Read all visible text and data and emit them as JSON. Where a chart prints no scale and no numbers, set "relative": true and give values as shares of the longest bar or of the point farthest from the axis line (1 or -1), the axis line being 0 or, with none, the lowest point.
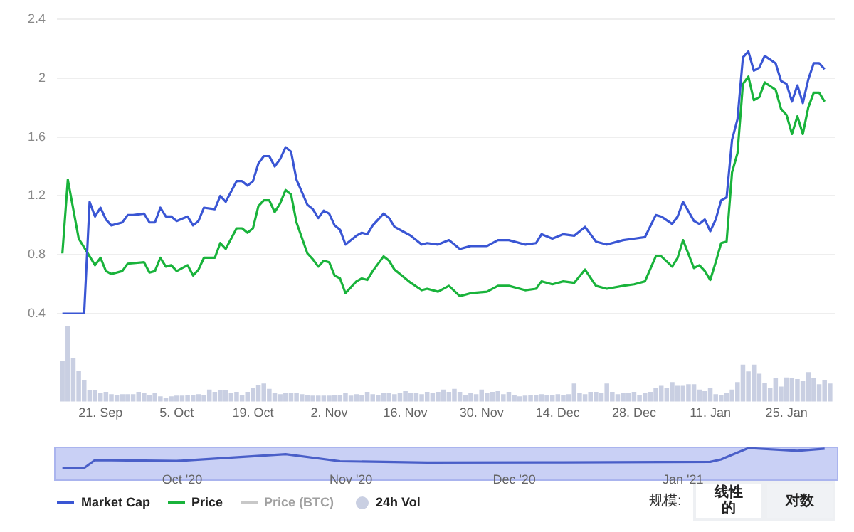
{
  "chart_data": [
    {
      "type": "line",
      "xlim": [
        "2020-09-13",
        "2021-02-03"
      ],
      "ylim": [
        0.4,
        2.4
      ],
      "yticks": [
        0.4,
        0.8,
        1.2,
        1.6,
        2,
        2.4
      ],
      "grid": "y",
      "tick_labels": "y",
      "legend": "bottom",
      "annotations": [
        "规模:",
        "线性的",
        "对数"
      ],
      "series": [
        {
          "name": "Market Cap",
          "color": "#3a56d4",
          "x": [
            "2020-09-14",
            "2020-09-18",
            "2020-09-19",
            "2020-09-20",
            "2020-09-21",
            "2020-09-22",
            "2020-09-23",
            "2020-09-25",
            "2020-09-26",
            "2020-09-27",
            "2020-09-29",
            "2020-09-30",
            "2020-10-01",
            "2020-10-02",
            "2020-10-03",
            "2020-10-04",
            "2020-10-05",
            "2020-10-07",
            "2020-10-08",
            "2020-10-09",
            "2020-10-10",
            "2020-10-12",
            "2020-10-13",
            "2020-10-14",
            "2020-10-16",
            "2020-10-17",
            "2020-10-18",
            "2020-10-19",
            "2020-10-20",
            "2020-10-21",
            "2020-10-22",
            "2020-10-23",
            "2020-10-24",
            "2020-10-25",
            "2020-10-26",
            "2020-10-27",
            "2020-10-29",
            "2020-10-30",
            "2020-10-31",
            "2020-11-01",
            "2020-11-02",
            "2020-11-03",
            "2020-11-04",
            "2020-11-05",
            "2020-11-07",
            "2020-11-08",
            "2020-11-09",
            "2020-11-10",
            "2020-11-12",
            "2020-11-13",
            "2020-11-14",
            "2020-11-16",
            "2020-11-17",
            "2020-11-19",
            "2020-11-20",
            "2020-11-22",
            "2020-11-24",
            "2020-11-26",
            "2020-11-28",
            "2020-12-01",
            "2020-12-03",
            "2020-12-05",
            "2020-12-08",
            "2020-12-10",
            "2020-12-11",
            "2020-12-13",
            "2020-12-15",
            "2020-12-17",
            "2020-12-19",
            "2020-12-21",
            "2020-12-23",
            "2020-12-26",
            "2020-12-28",
            "2020-12-30",
            "2021-01-01",
            "2021-01-02",
            "2021-01-04",
            "2021-01-05",
            "2021-01-06",
            "2021-01-08",
            "2021-01-09",
            "2021-01-10",
            "2021-01-11",
            "2021-01-12",
            "2021-01-13",
            "2021-01-14",
            "2021-01-15",
            "2021-01-16",
            "2021-01-17",
            "2021-01-18",
            "2021-01-19",
            "2021-01-20",
            "2021-01-21",
            "2021-01-23",
            "2021-01-24",
            "2021-01-25",
            "2021-01-26",
            "2021-01-27",
            "2021-01-28",
            "2021-01-29",
            "2021-01-30",
            "2021-01-31",
            "2021-02-01"
          ],
          "values": [
            0.4,
            0.4,
            1.16,
            1.06,
            1.12,
            1.04,
            1.0,
            1.02,
            1.07,
            1.07,
            1.08,
            1.02,
            1.02,
            1.12,
            1.06,
            1.06,
            1.03,
            1.06,
            1.0,
            1.03,
            1.12,
            1.11,
            1.2,
            1.16,
            1.3,
            1.3,
            1.27,
            1.3,
            1.42,
            1.47,
            1.47,
            1.4,
            1.45,
            1.53,
            1.5,
            1.31,
            1.14,
            1.11,
            1.05,
            1.1,
            1.08,
            1.0,
            0.97,
            0.87,
            0.93,
            0.95,
            0.94,
            1.0,
            1.08,
            1.05,
            0.99,
            0.95,
            0.93,
            0.87,
            0.88,
            0.87,
            0.9,
            0.84,
            0.86,
            0.86,
            0.9,
            0.9,
            0.87,
            0.88,
            0.94,
            0.91,
            0.94,
            0.93,
            0.99,
            0.89,
            0.87,
            0.9,
            0.91,
            0.92,
            1.07,
            1.06,
            1.01,
            1.06,
            1.16,
            1.03,
            1.01,
            1.04,
            0.96,
            1.04,
            1.17,
            1.19,
            1.58,
            1.72,
            2.14,
            2.18,
            2.05,
            2.07,
            2.15,
            2.1,
            1.98,
            1.96,
            1.84,
            1.95,
            1.83,
            1.99,
            2.1,
            2.1,
            2.06
          ]
        },
        {
          "name": "Price",
          "color": "#19b33b",
          "x": [
            "2020-09-14",
            "2020-09-15",
            "2020-09-17",
            "2020-09-18",
            "2020-09-20",
            "2020-09-21",
            "2020-09-22",
            "2020-09-23",
            "2020-09-25",
            "2020-09-26",
            "2020-09-29",
            "2020-09-30",
            "2020-10-01",
            "2020-10-02",
            "2020-10-03",
            "2020-10-04",
            "2020-10-05",
            "2020-10-07",
            "2020-10-08",
            "2020-10-09",
            "2020-10-10",
            "2020-10-12",
            "2020-10-13",
            "2020-10-14",
            "2020-10-16",
            "2020-10-17",
            "2020-10-18",
            "2020-10-19",
            "2020-10-20",
            "2020-10-21",
            "2020-10-22",
            "2020-10-23",
            "2020-10-24",
            "2020-10-25",
            "2020-10-26",
            "2020-10-27",
            "2020-10-29",
            "2020-10-30",
            "2020-10-31",
            "2020-11-01",
            "2020-11-02",
            "2020-11-03",
            "2020-11-04",
            "2020-11-05",
            "2020-11-07",
            "2020-11-08",
            "2020-11-09",
            "2020-11-10",
            "2020-11-12",
            "2020-11-13",
            "2020-11-14",
            "2020-11-16",
            "2020-11-17",
            "2020-11-19",
            "2020-11-20",
            "2020-11-22",
            "2020-11-24",
            "2020-11-26",
            "2020-11-28",
            "2020-12-01",
            "2020-12-03",
            "2020-12-05",
            "2020-12-08",
            "2020-12-10",
            "2020-12-11",
            "2020-12-13",
            "2020-12-15",
            "2020-12-17",
            "2020-12-19",
            "2020-12-21",
            "2020-12-23",
            "2020-12-26",
            "2020-12-28",
            "2020-12-30",
            "2021-01-01",
            "2021-01-02",
            "2021-01-04",
            "2021-01-05",
            "2021-01-06",
            "2021-01-08",
            "2021-01-09",
            "2021-01-10",
            "2021-01-11",
            "2021-01-12",
            "2021-01-13",
            "2021-01-14",
            "2021-01-15",
            "2021-01-16",
            "2021-01-17",
            "2021-01-18",
            "2021-01-19",
            "2021-01-20",
            "2021-01-21",
            "2021-01-23",
            "2021-01-24",
            "2021-01-25",
            "2021-01-26",
            "2021-01-27",
            "2021-01-28",
            "2021-01-29",
            "2021-01-30",
            "2021-01-31",
            "2021-02-01"
          ],
          "values": [
            0.81,
            1.31,
            0.91,
            0.85,
            0.73,
            0.78,
            0.69,
            0.67,
            0.69,
            0.74,
            0.75,
            0.68,
            0.69,
            0.78,
            0.72,
            0.73,
            0.69,
            0.73,
            0.66,
            0.7,
            0.78,
            0.78,
            0.88,
            0.84,
            0.98,
            0.98,
            0.95,
            0.98,
            1.13,
            1.17,
            1.17,
            1.09,
            1.15,
            1.24,
            1.21,
            1.02,
            0.81,
            0.77,
            0.72,
            0.76,
            0.75,
            0.66,
            0.64,
            0.54,
            0.62,
            0.64,
            0.63,
            0.69,
            0.79,
            0.76,
            0.7,
            0.64,
            0.61,
            0.56,
            0.57,
            0.55,
            0.59,
            0.52,
            0.54,
            0.55,
            0.59,
            0.59,
            0.56,
            0.57,
            0.62,
            0.6,
            0.62,
            0.61,
            0.7,
            0.59,
            0.57,
            0.59,
            0.6,
            0.62,
            0.79,
            0.79,
            0.72,
            0.78,
            0.9,
            0.71,
            0.73,
            0.69,
            0.63,
            0.75,
            0.88,
            0.89,
            1.36,
            1.49,
            1.96,
            2.01,
            1.85,
            1.87,
            1.97,
            1.92,
            1.79,
            1.75,
            1.62,
            1.74,
            1.62,
            1.8,
            1.9,
            1.9,
            1.84
          ]
        },
        {
          "name": "Price (BTC)",
          "color": "#c8c8c8"
        }
      ]
    },
    {
      "type": "bar",
      "relative": true,
      "xlim": [
        "2020-09-13",
        "2021-02-03"
      ],
      "tick_labels": "x",
      "legend": "bottom",
      "xticks": [
        {
          "value": "2020-09-21",
          "label": "21. Sep"
        },
        {
          "value": "2020-10-05",
          "label": "5. Oct"
        },
        {
          "value": "2020-10-19",
          "label": "19. Oct"
        },
        {
          "value": "2020-11-02",
          "label": "2. Nov"
        },
        {
          "value": "2020-11-16",
          "label": "16. Nov"
        },
        {
          "value": "2020-11-30",
          "label": "30. Nov"
        },
        {
          "value": "2020-12-14",
          "label": "14. Dec"
        },
        {
          "value": "2020-12-28",
          "label": "28. Dec"
        },
        {
          "value": "2021-01-11",
          "label": "11. Jan"
        },
        {
          "value": "2021-01-25",
          "label": "25. Jan"
        }
      ],
      "x": [
        "2020-09-14",
        "2020-09-15",
        "2020-09-16",
        "2020-09-17",
        "2020-09-18",
        "2020-09-19",
        "2020-09-20",
        "2020-09-21",
        "2020-09-22",
        "2020-09-23",
        "2020-09-24",
        "2020-09-25",
        "2020-09-26",
        "2020-09-27",
        "2020-09-28",
        "2020-09-29",
        "2020-09-30",
        "2020-10-01",
        "2020-10-02",
        "2020-10-03",
        "2020-10-04",
        "2020-10-05",
        "2020-10-06",
        "2020-10-07",
        "2020-10-08",
        "2020-10-09",
        "2020-10-10",
        "2020-10-11",
        "2020-10-12",
        "2020-10-13",
        "2020-10-14",
        "2020-10-15",
        "2020-10-16",
        "2020-10-17",
        "2020-10-18",
        "2020-10-19",
        "2020-10-20",
        "2020-10-21",
        "2020-10-22",
        "2020-10-23",
        "2020-10-24",
        "2020-10-25",
        "2020-10-26",
        "2020-10-27",
        "2020-10-28",
        "2020-10-29",
        "2020-10-30",
        "2020-10-31",
        "2020-11-01",
        "2020-11-02",
        "2020-11-03",
        "2020-11-04",
        "2020-11-05",
        "2020-11-06",
        "2020-11-07",
        "2020-11-08",
        "2020-11-09",
        "2020-11-10",
        "2020-11-11",
        "2020-11-12",
        "2020-11-13",
        "2020-11-14",
        "2020-11-15",
        "2020-11-16",
        "2020-11-17",
        "2020-11-18",
        "2020-11-19",
        "2020-11-20",
        "2020-11-21",
        "2020-11-22",
        "2020-11-23",
        "2020-11-24",
        "2020-11-25",
        "2020-11-26",
        "2020-11-27",
        "2020-11-28",
        "2020-11-29",
        "2020-11-30",
        "2020-12-01",
        "2020-12-02",
        "2020-12-03",
        "2020-12-04",
        "2020-12-05",
        "2020-12-06",
        "2020-12-07",
        "2020-12-08",
        "2020-12-09",
        "2020-12-10",
        "2020-12-11",
        "2020-12-12",
        "2020-12-13",
        "2020-12-14",
        "2020-12-15",
        "2020-12-16",
        "2020-12-17",
        "2020-12-18",
        "2020-12-19",
        "2020-12-20",
        "2020-12-21",
        "2020-12-22",
        "2020-12-23",
        "2020-12-24",
        "2020-12-25",
        "2020-12-26",
        "2020-12-27",
        "2020-12-28",
        "2020-12-29",
        "2020-12-30",
        "2020-12-31",
        "2021-01-01",
        "2021-01-02",
        "2021-01-03",
        "2021-01-04",
        "2021-01-05",
        "2021-01-06",
        "2021-01-07",
        "2021-01-08",
        "2021-01-09",
        "2021-01-10",
        "2021-01-11",
        "2021-01-12",
        "2021-01-13",
        "2021-01-14",
        "2021-01-15",
        "2021-01-16",
        "2021-01-17",
        "2021-01-18",
        "2021-01-19",
        "2021-01-20",
        "2021-01-21",
        "2021-01-22",
        "2021-01-23",
        "2021-01-24",
        "2021-01-25",
        "2021-01-26",
        "2021-01-27",
        "2021-01-28",
        "2021-01-29",
        "2021-01-30",
        "2021-01-31",
        "2021-02-01",
        "2021-02-02"
      ],
      "series": [
        {
          "name": "24h Vol",
          "color": "#c9cfe2",
          "values": [
            0.53,
            1.0,
            0.57,
            0.4,
            0.28,
            0.14,
            0.14,
            0.11,
            0.12,
            0.09,
            0.08,
            0.09,
            0.09,
            0.09,
            0.12,
            0.1,
            0.08,
            0.1,
            0.06,
            0.04,
            0.06,
            0.07,
            0.07,
            0.08,
            0.08,
            0.09,
            0.08,
            0.15,
            0.12,
            0.14,
            0.14,
            0.1,
            0.12,
            0.08,
            0.12,
            0.17,
            0.21,
            0.23,
            0.16,
            0.1,
            0.09,
            0.1,
            0.11,
            0.1,
            0.09,
            0.08,
            0.07,
            0.07,
            0.07,
            0.07,
            0.08,
            0.08,
            0.1,
            0.07,
            0.09,
            0.08,
            0.12,
            0.09,
            0.08,
            0.1,
            0.11,
            0.09,
            0.11,
            0.13,
            0.11,
            0.1,
            0.09,
            0.12,
            0.1,
            0.12,
            0.15,
            0.12,
            0.16,
            0.12,
            0.08,
            0.1,
            0.09,
            0.15,
            0.1,
            0.12,
            0.13,
            0.09,
            0.12,
            0.08,
            0.06,
            0.07,
            0.08,
            0.08,
            0.09,
            0.08,
            0.08,
            0.09,
            0.08,
            0.09,
            0.23,
            0.11,
            0.09,
            0.12,
            0.12,
            0.11,
            0.23,
            0.12,
            0.09,
            0.1,
            0.1,
            0.12,
            0.08,
            0.11,
            0.12,
            0.17,
            0.2,
            0.17,
            0.25,
            0.2,
            0.2,
            0.22,
            0.22,
            0.15,
            0.13,
            0.17,
            0.09,
            0.08,
            0.11,
            0.15,
            0.25,
            0.48,
            0.39,
            0.48,
            0.36,
            0.24,
            0.17,
            0.3,
            0.19,
            0.31,
            0.3,
            0.29,
            0.27,
            0.38,
            0.3,
            0.22,
            0.28,
            0.23
          ]
        }
      ]
    },
    {
      "type": "line",
      "relative": true,
      "xlim": [
        "2020-09-13",
        "2021-02-03"
      ],
      "tick_labels": "x",
      "xticks": [
        {
          "value": "2020-10-06",
          "label": "Oct '20"
        },
        {
          "value": "2020-11-06",
          "label": "Nov '20"
        },
        {
          "value": "2020-12-06",
          "label": "Dec '20"
        },
        {
          "value": "2021-01-06",
          "label": "Jan '21"
        }
      ],
      "series": [
        {
          "color": "#4a5fc8",
          "x": [
            "2020-09-14",
            "2020-09-18",
            "2020-09-20",
            "2020-10-05",
            "2020-10-25",
            "2020-11-04",
            "2020-11-20",
            "2020-12-15",
            "2021-01-11",
            "2021-01-13",
            "2021-01-18",
            "2021-01-27",
            "2021-02-01"
          ],
          "values": [
            0,
            0,
            0.4,
            0.35,
            0.69,
            0.34,
            0.27,
            0.28,
            0.31,
            0.43,
            1.0,
            0.86,
            0.97
          ]
        }
      ]
    }
  ]
}
